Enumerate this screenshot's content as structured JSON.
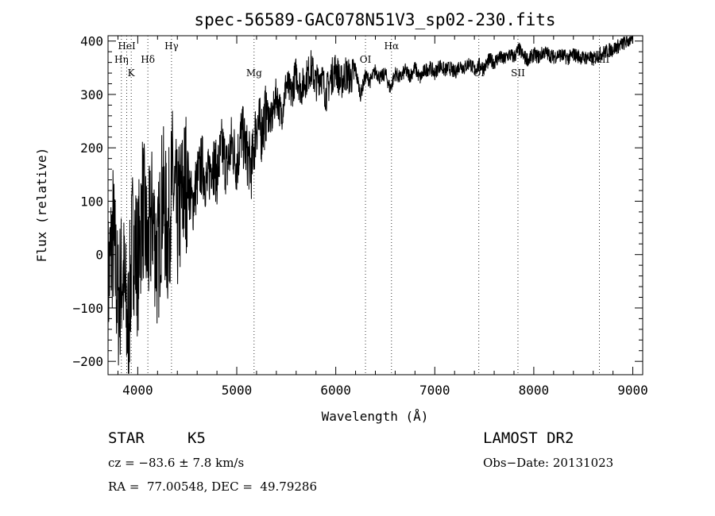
{
  "chart_data": {
    "type": "line",
    "title": "spec-56589-GAC078N51V3_sp02-230.fits",
    "xlabel": "Wavelength (Å)",
    "ylabel": "Flux (relative)",
    "xlim": [
      3700,
      9100
    ],
    "ylim": [
      -225,
      410
    ],
    "x_ticks": [
      4000,
      5000,
      6000,
      7000,
      8000,
      9000
    ],
    "y_ticks": [
      -200,
      -100,
      0,
      100,
      200,
      300,
      400
    ],
    "grid": false,
    "line_color": "#000000",
    "lines": [
      {
        "label": "HeI",
        "x": 3889,
        "row": 0
      },
      {
        "label": "Hη",
        "x": 3835,
        "row": 1
      },
      {
        "label": "K",
        "x": 3934,
        "row": 2
      },
      {
        "label": "Hδ",
        "x": 4102,
        "row": 1
      },
      {
        "label": "Hγ",
        "x": 4341,
        "row": 0
      },
      {
        "label": "Mg",
        "x": 5175,
        "row": 2
      },
      {
        "label": "OI",
        "x": 6300,
        "row": 1
      },
      {
        "label": "Hα",
        "x": 6563,
        "row": 0
      },
      {
        "label": "OI",
        "x": 7445,
        "row": 2
      },
      {
        "label": "SII",
        "x": 7840,
        "row": 2
      },
      {
        "label": "CaII",
        "x": 8662,
        "row": 1
      }
    ],
    "series": [
      {
        "x": [
          3700,
          3750,
          3800,
          3850,
          3900,
          3950,
          4000,
          4050,
          4100,
          4150,
          4200,
          4250,
          4300,
          4350,
          4400,
          4450,
          4500,
          4550,
          4600,
          4650,
          4700,
          4750,
          4800,
          4850,
          4900,
          4950,
          5000,
          5050,
          5100,
          5150,
          5200,
          5250,
          5300,
          5350,
          5400,
          5450,
          5500,
          5550,
          5600,
          5650,
          5700,
          5750,
          5800,
          5850,
          5900,
          5950,
          6000,
          6050,
          6100,
          6150,
          6200,
          6250,
          6300,
          6350,
          6400,
          6450,
          6500,
          6550,
          6600,
          6650,
          6700,
          6750,
          6800,
          6850,
          6900,
          6950,
          7000,
          7050,
          7100,
          7150,
          7200,
          7250,
          7300,
          7350,
          7400,
          7450,
          7500,
          7550,
          7600,
          7650,
          7700,
          7750,
          7800,
          7850,
          7900,
          7950,
          8000,
          8050,
          8100,
          8150,
          8200,
          8250,
          8300,
          8350,
          8400,
          8450,
          8500,
          8550,
          8600,
          8650,
          8700,
          8750,
          8800,
          8850,
          8900,
          8950,
          9000
        ],
        "y": [
          -60,
          40,
          -90,
          -30,
          -150,
          40,
          -20,
          100,
          0,
          80,
          -20,
          120,
          30,
          140,
          60,
          110,
          150,
          90,
          140,
          170,
          130,
          180,
          150,
          200,
          160,
          210,
          170,
          230,
          190,
          160,
          250,
          230,
          270,
          250,
          300,
          260,
          320,
          300,
          340,
          310,
          330,
          350,
          320,
          340,
          300,
          330,
          350,
          320,
          340,
          330,
          345,
          300,
          335,
          325,
          345,
          330,
          340,
          310,
          340,
          330,
          345,
          335,
          350,
          330,
          345,
          350,
          340,
          355,
          345,
          350,
          340,
          355,
          350,
          360,
          345,
          355,
          350,
          365,
          360,
          370,
          365,
          375,
          370,
          385,
          370,
          365,
          375,
          370,
          380,
          375,
          370,
          375,
          372,
          368,
          375,
          372,
          368,
          370,
          365,
          375,
          378,
          382,
          385,
          390,
          395,
          400,
          405
        ]
      }
    ]
  },
  "footer": {
    "object_class": "STAR",
    "subclass": "K5",
    "survey": "LAMOST DR2",
    "cz": "cz = −83.6 ± 7.8 km/s",
    "obs_date": "Obs−Date: 20131023",
    "coords": "RA =  77.00548, DEC =  49.79286"
  }
}
